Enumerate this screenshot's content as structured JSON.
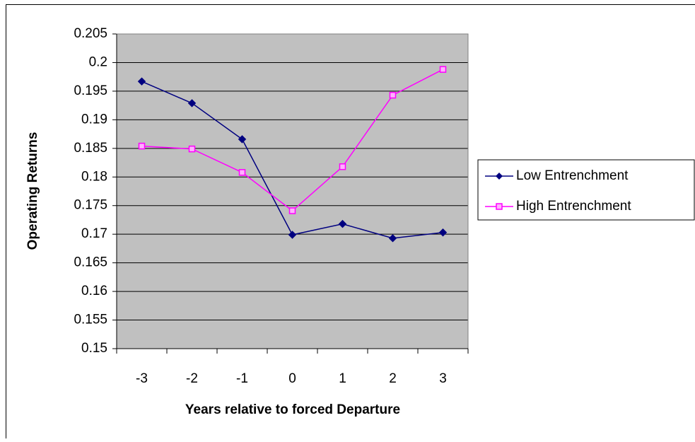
{
  "chart_data": {
    "type": "line",
    "xlabel": "Years relative to forced Departure",
    "ylabel": "Operating Returns",
    "categories": [
      "-3",
      "-2",
      "-1",
      "0",
      "1",
      "2",
      "3"
    ],
    "series": [
      {
        "name": "Low Entrenchment",
        "color": "#000080",
        "marker": "diamond",
        "values": [
          0.1967,
          0.1929,
          0.1866,
          0.1699,
          0.1718,
          0.1693,
          0.1703
        ]
      },
      {
        "name": "High Entrenchment",
        "color": "#ff00ff",
        "marker": "square",
        "values": [
          0.1854,
          0.1849,
          0.1808,
          0.1741,
          0.1818,
          0.1943,
          0.1988
        ]
      }
    ],
    "ylim": [
      0.15,
      0.205
    ],
    "yticks": [
      0.15,
      0.155,
      0.16,
      0.165,
      0.17,
      0.175,
      0.18,
      0.185,
      0.19,
      0.195,
      0.2,
      0.205
    ],
    "grid": true,
    "legend": "right"
  }
}
